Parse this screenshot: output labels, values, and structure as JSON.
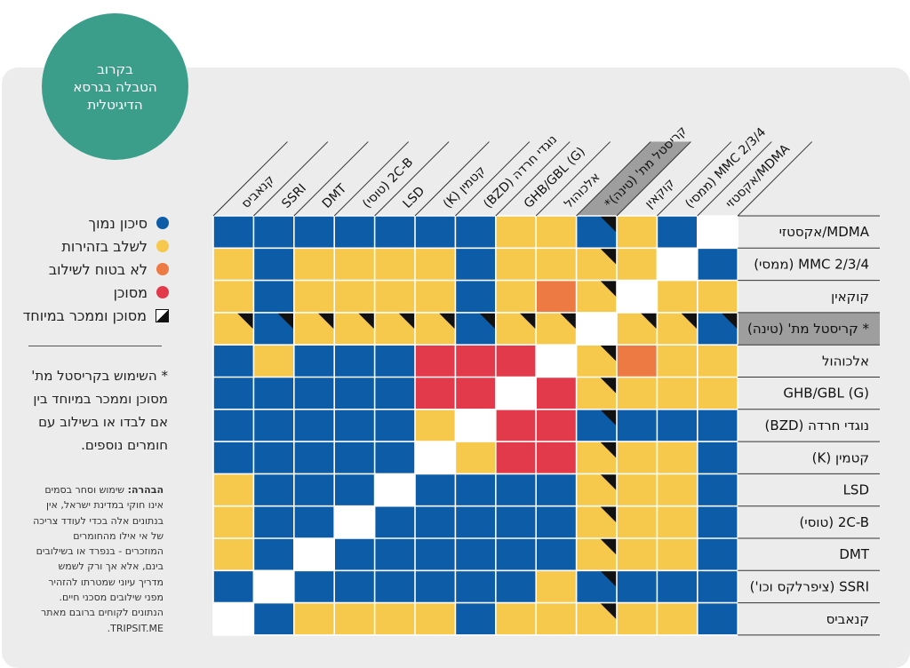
{
  "badge": {
    "lines": [
      "בקרוב",
      "הטבלה בגרסא",
      "הדיגיטלית"
    ]
  },
  "legend": [
    {
      "label": "סיכון נמוך",
      "type": "blue",
      "color": "#0c5ca8"
    },
    {
      "label": "לשלב בזהירות",
      "type": "yellow",
      "color": "#f6c84c"
    },
    {
      "label": "לא בטוח לשילוב",
      "type": "orange",
      "color": "#ee7a43"
    },
    {
      "label": "מסוכן",
      "type": "red",
      "color": "#e23a4b"
    },
    {
      "label": "מסוכן וממכר במיוחד",
      "type": "special",
      "color": "#111111"
    }
  ],
  "note": "* השימוש בקריסטל מת' מסוכן וממכר במיוחד בין אם לבדו או בשילוב עם חומרים נוספים.",
  "disclaimer": {
    "lead": "הבהרה:",
    "text": "שימוש וסחר בסמים אינו חוקי במדינת ישראל, אין בנתונים אלה בכדי לעודד צריכה של אי אילו מהחומרים המוזכרים - בנפרד או בשילובים בינם, אלא אך ורק לשמש מדריך עיוני שמטרתו להזהיר מפני שילובים מסכני חיים. הנתונים לקוחים ברובם מאתר TRIPSIT.ME."
  },
  "colors": {
    "B": "#0c5ca8",
    "Y": "#f6c84c",
    "O": "#ee7a43",
    "R": "#e23a4b",
    "W": "#ffffff",
    "header_gray": "#9e9e9e",
    "grid_line": "#ffffff"
  },
  "row_labels": [
    "MDMA/אקסטזי",
    "MMC 2/3/4 (ממסי)",
    "קוקאין",
    "* קריסטל מת' (טינה)",
    "אלכוהול",
    "GHB/GBL (G)",
    "נוגדי חרדה (BZD)",
    "קטמין (K)",
    "LSD",
    "2C-B (טוסי)",
    "DMT",
    "SSRI (ציפרלקס וכו')",
    "קנאביס"
  ],
  "column_headers": [
    "קנאביס",
    "SSRI",
    "DMT",
    "2C-B (טוסי)",
    "LSD",
    "קטמין (K)",
    "נוגדי חרדה (BZD)",
    "GHB/GBL (G)",
    "אלכוהול",
    "קריסטל מת' (טינה)*",
    "קוקאין",
    "MMC 2/3/4 (ממסי)",
    "MDMA/אקסטזי"
  ],
  "highlight_row": 3,
  "highlight_column": 9,
  "matrix": [
    [
      "B",
      "B",
      "B",
      "B",
      "B",
      "B",
      "B",
      "Y",
      "Y",
      "B",
      "Y",
      "B",
      "W"
    ],
    [
      "Y",
      "B",
      "Y",
      "Y",
      "Y",
      "Y",
      "B",
      "Y",
      "Y",
      "Y",
      "Y",
      "W",
      "B"
    ],
    [
      "Y",
      "B",
      "Y",
      "Y",
      "Y",
      "Y",
      "B",
      "Y",
      "O",
      "Y",
      "W",
      "Y",
      "Y"
    ],
    [
      "Y",
      "B",
      "Y",
      "Y",
      "Y",
      "Y",
      "B",
      "Y",
      "Y",
      "W",
      "Y",
      "Y",
      "B"
    ],
    [
      "B",
      "Y",
      "B",
      "B",
      "B",
      "R",
      "R",
      "R",
      "W",
      "Y",
      "O",
      "Y",
      "Y"
    ],
    [
      "B",
      "B",
      "B",
      "B",
      "B",
      "R",
      "R",
      "W",
      "R",
      "Y",
      "Y",
      "Y",
      "Y"
    ],
    [
      "B",
      "B",
      "B",
      "B",
      "B",
      "Y",
      "W",
      "R",
      "R",
      "B",
      "B",
      "B",
      "B"
    ],
    [
      "B",
      "B",
      "B",
      "B",
      "B",
      "W",
      "Y",
      "R",
      "R",
      "Y",
      "Y",
      "Y",
      "B"
    ],
    [
      "Y",
      "B",
      "B",
      "B",
      "W",
      "B",
      "B",
      "B",
      "B",
      "Y",
      "Y",
      "Y",
      "B"
    ],
    [
      "Y",
      "B",
      "B",
      "W",
      "B",
      "B",
      "B",
      "B",
      "B",
      "Y",
      "Y",
      "Y",
      "B"
    ],
    [
      "Y",
      "B",
      "W",
      "B",
      "B",
      "B",
      "B",
      "B",
      "B",
      "Y",
      "Y",
      "Y",
      "B"
    ],
    [
      "B",
      "W",
      "B",
      "B",
      "B",
      "B",
      "B",
      "B",
      "Y",
      "B",
      "B",
      "B",
      "B"
    ],
    [
      "W",
      "B",
      "Y",
      "Y",
      "Y",
      "Y",
      "B",
      "Y",
      "Y",
      "Y",
      "Y",
      "Y",
      "B"
    ]
  ],
  "special_marks": [
    [
      0,
      9
    ],
    [
      1,
      9
    ],
    [
      2,
      9
    ],
    [
      3,
      0
    ],
    [
      3,
      1
    ],
    [
      3,
      2
    ],
    [
      3,
      3
    ],
    [
      3,
      4
    ],
    [
      3,
      5
    ],
    [
      3,
      6
    ],
    [
      3,
      7
    ],
    [
      3,
      8
    ],
    [
      3,
      10
    ],
    [
      3,
      11
    ],
    [
      3,
      12
    ],
    [
      4,
      9
    ],
    [
      5,
      9
    ],
    [
      6,
      9
    ],
    [
      7,
      9
    ],
    [
      8,
      9
    ],
    [
      9,
      9
    ],
    [
      10,
      9
    ],
    [
      11,
      9
    ],
    [
      12,
      9
    ]
  ]
}
